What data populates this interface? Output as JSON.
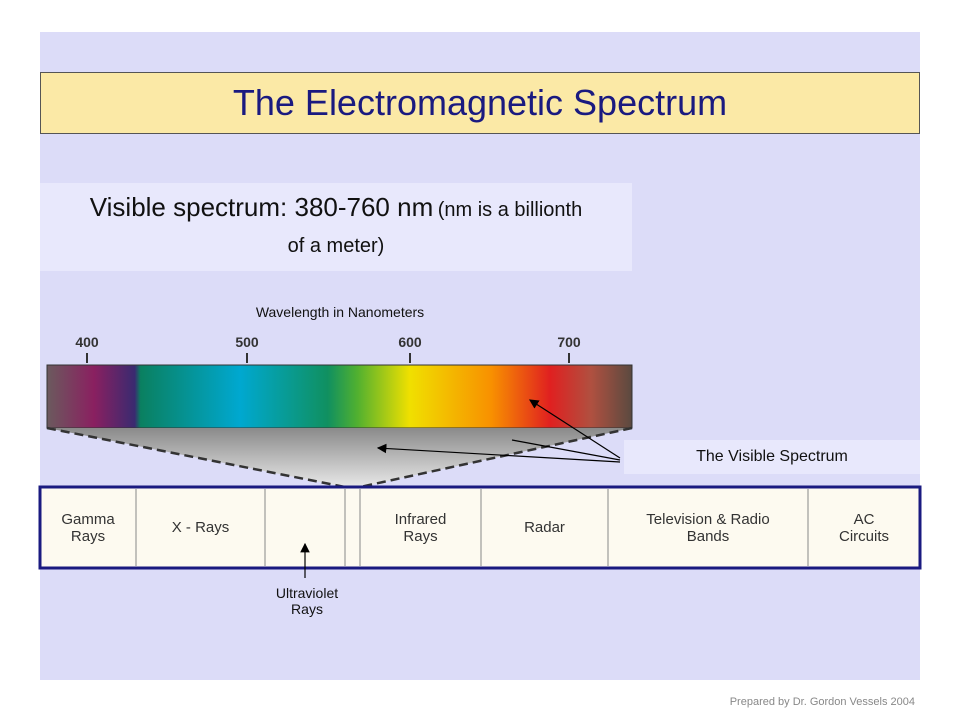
{
  "header": {
    "title": "The Electromagnetic Spectrum"
  },
  "subtitle": {
    "main": "Visible spectrum: 380-760 nm",
    "note": "(nm is a billionth of a meter)"
  },
  "scale": {
    "label": "Wavelength in Nanometers",
    "ticks": [
      400,
      500,
      600,
      700
    ]
  },
  "bands": [
    "Gamma Rays",
    "X - Rays",
    "Infrared Rays",
    "Radar",
    "Television & Radio Bands",
    "AC Circuits"
  ],
  "callouts": {
    "visible": "The Visible Spectrum",
    "ultraviolet": "Ultraviolet Rays"
  },
  "footer": "Prepared by Dr. Gordon Vessels 2004"
}
